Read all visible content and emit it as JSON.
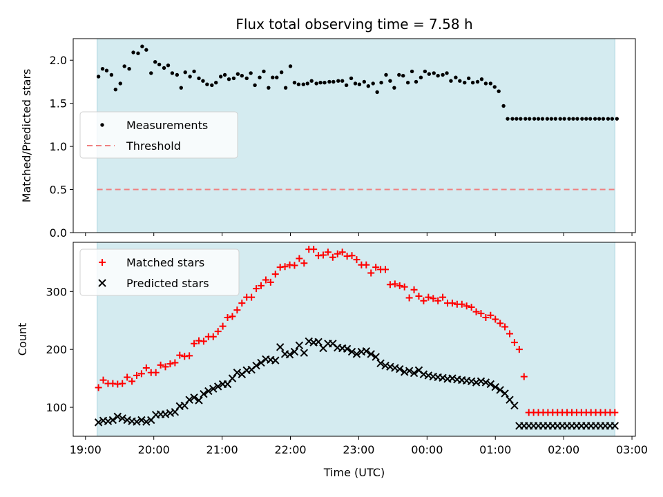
{
  "title": "Flux total observing time = 7.58 h",
  "colors": {
    "shade": "#d4ebf0",
    "shade_edge": "#a9d3de",
    "measurement": "#000000",
    "threshold": "#f08080",
    "matched": "#ff0000",
    "predicted": "#000000"
  },
  "chart_data": [
    {
      "type": "scatter",
      "ylabel": "Matched/Predicted stars",
      "xlabel": "",
      "x_unit": "hours since 19:00 UTC",
      "xlim": [
        -0.18,
        8.05
      ],
      "ylim": [
        0,
        2.25
      ],
      "yticks": [
        "0.0",
        "0.5",
        "1.0",
        "1.5",
        "2.0"
      ],
      "ytick_values": [
        0,
        0.5,
        1.0,
        1.5,
        2.0
      ],
      "shaded_span": [
        0.17,
        7.75
      ],
      "legend_position": "center-left",
      "series": [
        {
          "name": "Measurements",
          "marker": "dot",
          "x": [
            0.19,
            0.25,
            0.31,
            0.38,
            0.44,
            0.51,
            0.57,
            0.64,
            0.7,
            0.77,
            0.83,
            0.89,
            0.96,
            1.02,
            1.08,
            1.15,
            1.21,
            1.27,
            1.34,
            1.4,
            1.46,
            1.53,
            1.59,
            1.66,
            1.72,
            1.78,
            1.85,
            1.91,
            1.98,
            2.04,
            2.1,
            2.17,
            2.23,
            2.29,
            2.36,
            2.42,
            2.48,
            2.55,
            2.61,
            2.68,
            2.74,
            2.8,
            2.87,
            2.93,
            3.0,
            3.06,
            3.12,
            3.19,
            3.25,
            3.31,
            3.38,
            3.44,
            3.5,
            3.57,
            3.63,
            3.7,
            3.76,
            3.82,
            3.89,
            3.95,
            4.01,
            4.08,
            4.14,
            4.21,
            4.27,
            4.33,
            4.4,
            4.46,
            4.52,
            4.59,
            4.65,
            4.72,
            4.78,
            4.84,
            4.91,
            4.97,
            5.03,
            5.1,
            5.16,
            5.23,
            5.29,
            5.35,
            5.42,
            5.48,
            5.55,
            5.61,
            5.67,
            5.74,
            5.8,
            5.86,
            5.93,
            5.99,
            6.05,
            6.12,
            6.18,
            6.25,
            6.31,
            6.37,
            6.44,
            6.5,
            6.57,
            6.63,
            6.69,
            6.76,
            6.82,
            6.88,
            6.95,
            7.01,
            7.08,
            7.14,
            7.2,
            7.27,
            7.33,
            7.39,
            7.46,
            7.52,
            7.58,
            7.65,
            7.71,
            7.78
          ],
          "y": [
            1.81,
            1.9,
            1.88,
            1.83,
            1.66,
            1.73,
            1.93,
            1.9,
            2.09,
            2.08,
            2.16,
            2.12,
            1.85,
            1.98,
            1.95,
            1.91,
            1.94,
            1.85,
            1.83,
            1.68,
            1.86,
            1.81,
            1.87,
            1.79,
            1.76,
            1.72,
            1.71,
            1.74,
            1.81,
            1.83,
            1.78,
            1.79,
            1.84,
            1.82,
            1.79,
            1.85,
            1.71,
            1.8,
            1.87,
            1.68,
            1.8,
            1.8,
            1.86,
            1.68,
            1.93,
            1.74,
            1.72,
            1.72,
            1.73,
            1.76,
            1.73,
            1.74,
            1.74,
            1.75,
            1.75,
            1.76,
            1.76,
            1.71,
            1.79,
            1.73,
            1.72,
            1.75,
            1.7,
            1.73,
            1.63,
            1.74,
            1.83,
            1.76,
            1.68,
            1.83,
            1.82,
            1.74,
            1.87,
            1.75,
            1.8,
            1.87,
            1.84,
            1.85,
            1.82,
            1.83,
            1.85,
            1.76,
            1.8,
            1.76,
            1.74,
            1.79,
            1.74,
            1.75,
            1.78,
            1.73,
            1.73,
            1.69,
            1.64,
            1.47,
            1.32,
            1.32,
            1.32,
            1.32,
            1.32,
            1.32,
            1.32,
            1.32,
            1.32,
            1.32,
            1.32,
            1.32,
            1.32,
            1.32,
            1.32,
            1.32,
            1.32,
            1.32,
            1.32,
            1.32,
            1.32,
            1.32,
            1.32,
            1.32,
            1.32,
            1.32
          ]
        },
        {
          "name": "Threshold",
          "marker": "dashed-line",
          "x": [
            0.17,
            7.75
          ],
          "y": [
            0.5,
            0.5
          ]
        }
      ]
    },
    {
      "type": "scatter",
      "ylabel": "Count",
      "xlabel": "Time (UTC)",
      "x_unit": "hours since 19:00 UTC",
      "xlim": [
        -0.18,
        8.05
      ],
      "ylim": [
        50,
        385
      ],
      "yticks": [
        "100",
        "200",
        "300"
      ],
      "ytick_values": [
        100,
        200,
        300
      ],
      "xticks": [
        "19:00",
        "20:00",
        "21:00",
        "22:00",
        "23:00",
        "00:00",
        "01:00",
        "02:00",
        "03:00"
      ],
      "xtick_values": [
        0,
        1,
        2,
        3,
        4,
        5,
        6,
        7,
        8
      ],
      "shaded_span": [
        0.17,
        7.75
      ],
      "legend_position": "top-left",
      "series": [
        {
          "name": "Matched stars",
          "marker": "plus",
          "x": [
            0.19,
            0.26,
            0.33,
            0.4,
            0.47,
            0.54,
            0.61,
            0.68,
            0.75,
            0.82,
            0.89,
            0.96,
            1.03,
            1.1,
            1.17,
            1.24,
            1.31,
            1.38,
            1.45,
            1.52,
            1.59,
            1.66,
            1.73,
            1.8,
            1.87,
            1.94,
            2.01,
            2.08,
            2.15,
            2.22,
            2.29,
            2.36,
            2.43,
            2.5,
            2.57,
            2.64,
            2.71,
            2.78,
            2.85,
            2.92,
            2.99,
            3.06,
            3.13,
            3.2,
            3.27,
            3.34,
            3.41,
            3.48,
            3.55,
            3.62,
            3.69,
            3.76,
            3.83,
            3.9,
            3.97,
            4.04,
            4.11,
            4.18,
            4.25,
            4.32,
            4.39,
            4.46,
            4.53,
            4.6,
            4.67,
            4.74,
            4.81,
            4.88,
            4.95,
            5.02,
            5.09,
            5.16,
            5.23,
            5.3,
            5.37,
            5.44,
            5.51,
            5.58,
            5.65,
            5.72,
            5.79,
            5.86,
            5.93,
            6.0,
            6.07,
            6.14,
            6.21,
            6.28,
            6.35,
            6.42,
            6.49,
            6.56,
            6.63,
            6.7,
            6.77,
            6.84,
            6.91,
            6.98,
            7.05,
            7.12,
            7.19,
            7.26,
            7.33,
            7.4,
            7.47,
            7.54,
            7.61,
            7.68,
            7.75
          ],
          "y": [
            134,
            147,
            141,
            141,
            140,
            141,
            152,
            145,
            155,
            158,
            168,
            160,
            160,
            173,
            170,
            175,
            177,
            190,
            188,
            189,
            210,
            215,
            214,
            222,
            222,
            231,
            240,
            255,
            257,
            268,
            280,
            290,
            290,
            305,
            310,
            320,
            316,
            330,
            342,
            343,
            346,
            345,
            357,
            349,
            373,
            373,
            362,
            363,
            368,
            359,
            365,
            368,
            361,
            362,
            355,
            346,
            346,
            332,
            342,
            338,
            338,
            312,
            313,
            310,
            308,
            289,
            303,
            292,
            284,
            290,
            288,
            284,
            290,
            280,
            280,
            278,
            278,
            275,
            273,
            265,
            262,
            255,
            259,
            252,
            245,
            239,
            227,
            212,
            200,
            153,
            91,
            91,
            91,
            91,
            91,
            91,
            91,
            91,
            91,
            91,
            91,
            91,
            91,
            91,
            91,
            91,
            91,
            91,
            91
          ]
        },
        {
          "name": "Predicted stars",
          "marker": "x",
          "x": [
            0.19,
            0.26,
            0.33,
            0.4,
            0.47,
            0.54,
            0.61,
            0.68,
            0.75,
            0.82,
            0.89,
            0.96,
            1.03,
            1.1,
            1.17,
            1.24,
            1.31,
            1.38,
            1.45,
            1.52,
            1.59,
            1.66,
            1.73,
            1.8,
            1.87,
            1.94,
            2.01,
            2.08,
            2.15,
            2.22,
            2.29,
            2.36,
            2.43,
            2.5,
            2.57,
            2.64,
            2.71,
            2.78,
            2.85,
            2.92,
            2.99,
            3.06,
            3.13,
            3.2,
            3.27,
            3.34,
            3.41,
            3.48,
            3.55,
            3.62,
            3.69,
            3.76,
            3.83,
            3.9,
            3.97,
            4.04,
            4.11,
            4.18,
            4.25,
            4.32,
            4.39,
            4.46,
            4.53,
            4.6,
            4.67,
            4.74,
            4.81,
            4.88,
            4.95,
            5.02,
            5.09,
            5.16,
            5.23,
            5.3,
            5.37,
            5.44,
            5.51,
            5.58,
            5.65,
            5.72,
            5.79,
            5.86,
            5.93,
            6.0,
            6.07,
            6.14,
            6.21,
            6.28,
            6.35,
            6.42,
            6.49,
            6.56,
            6.63,
            6.7,
            6.77,
            6.84,
            6.91,
            6.98,
            7.05,
            7.12,
            7.19,
            7.26,
            7.33,
            7.4,
            7.47,
            7.54,
            7.61,
            7.68,
            7.75
          ],
          "y": [
            74,
            77,
            76,
            78,
            84,
            81,
            78,
            76,
            75,
            78,
            75,
            78,
            87,
            88,
            88,
            90,
            92,
            102,
            103,
            113,
            117,
            112,
            123,
            128,
            132,
            136,
            140,
            140,
            150,
            160,
            157,
            164,
            165,
            172,
            177,
            183,
            182,
            181,
            204,
            192,
            191,
            196,
            207,
            194,
            214,
            212,
            213,
            202,
            210,
            210,
            203,
            202,
            201,
            196,
            192,
            196,
            197,
            192,
            187,
            176,
            172,
            170,
            168,
            166,
            161,
            163,
            159,
            164,
            157,
            155,
            153,
            152,
            151,
            149,
            150,
            148,
            147,
            146,
            145,
            143,
            145,
            143,
            140,
            135,
            130,
            124,
            113,
            103,
            68,
            68,
            68,
            68,
            68,
            68,
            68,
            68,
            68,
            68,
            68,
            68,
            68,
            68,
            68,
            68,
            68,
            68,
            68,
            68,
            68
          ]
        }
      ]
    }
  ]
}
